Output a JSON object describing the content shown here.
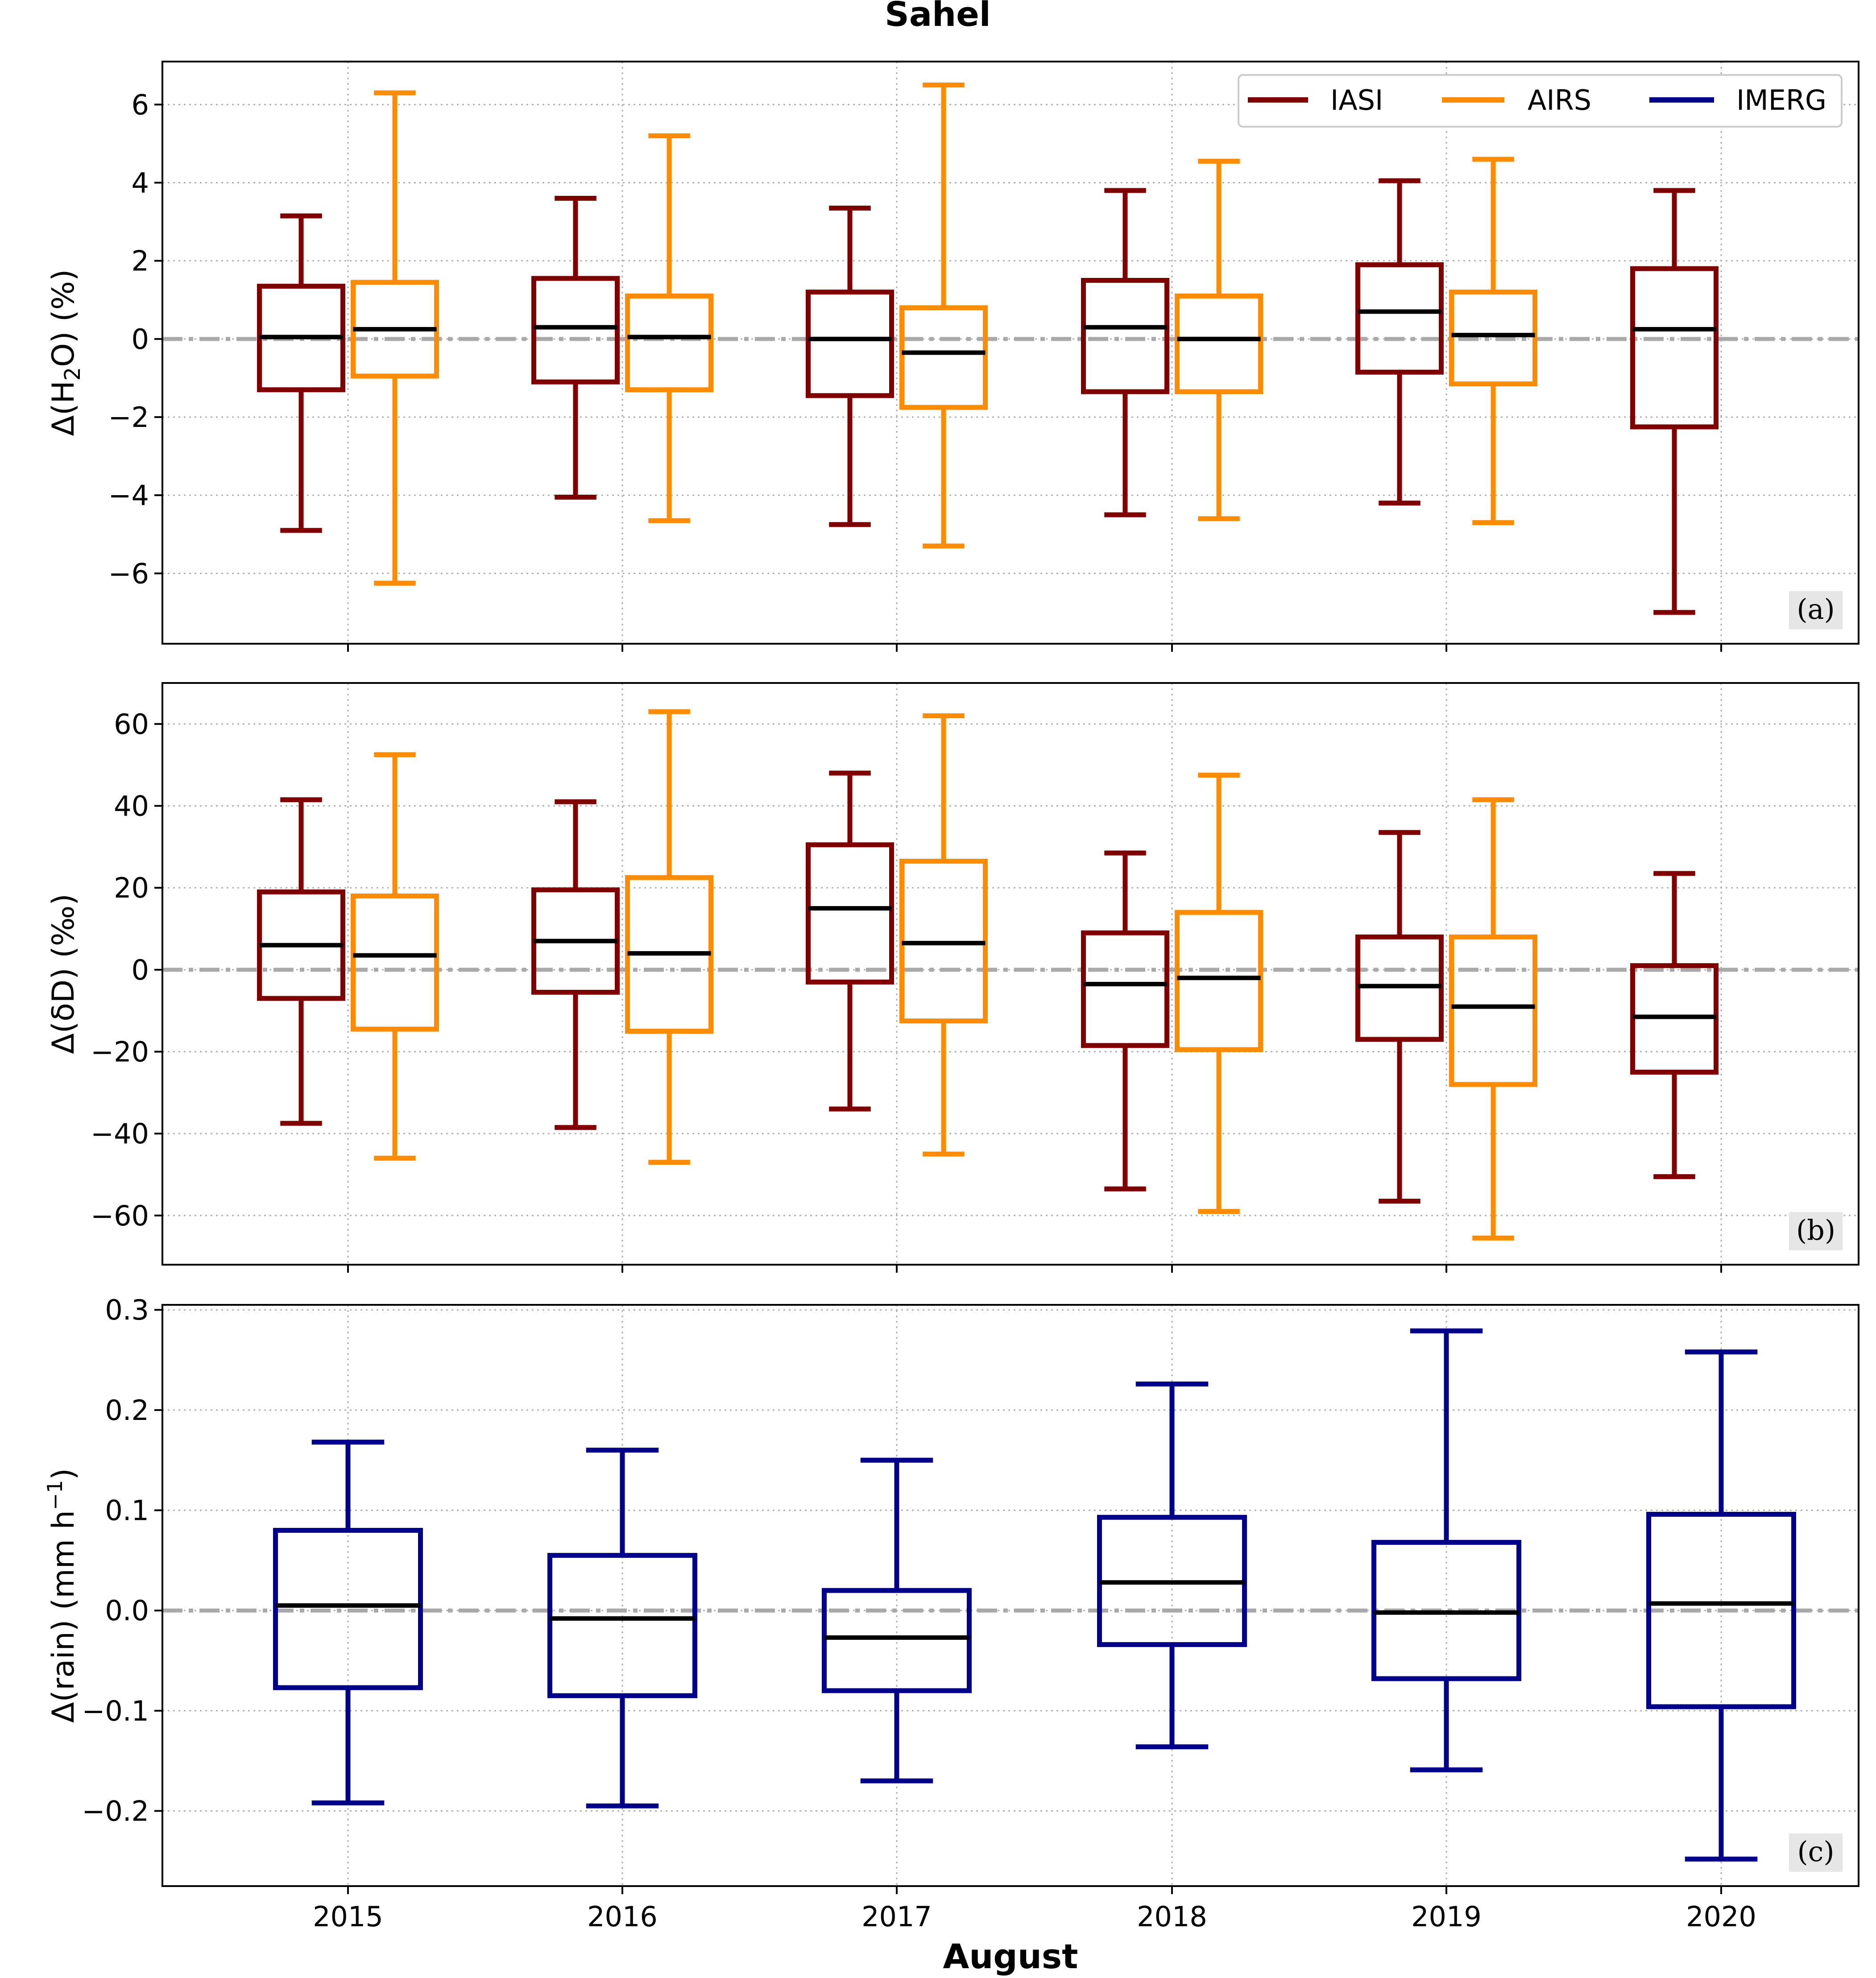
{
  "figure": {
    "title": "Sahel",
    "xlabel": "August",
    "legend": [
      "IASI",
      "AIRS",
      "IMERG"
    ]
  },
  "chart_data": [
    {
      "type": "box",
      "panel_label": "(a)",
      "ylabel_prefix": "Δ(H",
      "ylabel_sub": "2",
      "ylabel_suffix": "O) (%)",
      "categories": [
        "2015",
        "2016",
        "2017",
        "2018",
        "2019",
        "2020"
      ],
      "ylim": [
        -7.8,
        7.1
      ],
      "yticks": [
        -6,
        -4,
        -2,
        0,
        2,
        4,
        6
      ],
      "ytick_labels": [
        "−6",
        "−4",
        "−2",
        "0",
        "2",
        "4",
        "6"
      ],
      "grid": true,
      "legend_position": "top-right",
      "series": [
        {
          "name": "IASI",
          "color": "#800000",
          "boxes": [
            {
              "category": "2015",
              "whislo": -4.9,
              "q1": -1.3,
              "med": 0.05,
              "q3": 1.35,
              "whishi": 3.15
            },
            {
              "category": "2016",
              "whislo": -4.05,
              "q1": -1.1,
              "med": 0.3,
              "q3": 1.55,
              "whishi": 3.6
            },
            {
              "category": "2017",
              "whislo": -4.75,
              "q1": -1.45,
              "med": 0.0,
              "q3": 1.2,
              "whishi": 3.35
            },
            {
              "category": "2018",
              "whislo": -4.5,
              "q1": -1.35,
              "med": 0.3,
              "q3": 1.5,
              "whishi": 3.8
            },
            {
              "category": "2019",
              "whislo": -4.2,
              "q1": -0.85,
              "med": 0.7,
              "q3": 1.9,
              "whishi": 4.05
            },
            {
              "category": "2020",
              "whislo": -7.0,
              "q1": -2.25,
              "med": 0.25,
              "q3": 1.8,
              "whishi": 3.8
            }
          ]
        },
        {
          "name": "AIRS",
          "color": "#ff8c00",
          "boxes": [
            {
              "category": "2015",
              "whislo": -6.25,
              "q1": -0.95,
              "med": 0.25,
              "q3": 1.45,
              "whishi": 6.3
            },
            {
              "category": "2016",
              "whislo": -4.65,
              "q1": -1.3,
              "med": 0.05,
              "q3": 1.1,
              "whishi": 5.2
            },
            {
              "category": "2017",
              "whislo": -5.3,
              "q1": -1.75,
              "med": -0.35,
              "q3": 0.8,
              "whishi": 6.5
            },
            {
              "category": "2018",
              "whislo": -4.6,
              "q1": -1.35,
              "med": 0.0,
              "q3": 1.1,
              "whishi": 4.55
            },
            {
              "category": "2019",
              "whislo": -4.7,
              "q1": -1.15,
              "med": 0.1,
              "q3": 1.2,
              "whishi": 4.6
            }
          ]
        }
      ]
    },
    {
      "type": "box",
      "panel_label": "(b)",
      "ylabel": "Δ(δD) (‰)",
      "categories": [
        "2015",
        "2016",
        "2017",
        "2018",
        "2019",
        "2020"
      ],
      "ylim": [
        -72,
        70
      ],
      "yticks": [
        -60,
        -40,
        -20,
        0,
        20,
        40,
        60
      ],
      "ytick_labels": [
        "−60",
        "−40",
        "−20",
        "0",
        "20",
        "40",
        "60"
      ],
      "grid": true,
      "series": [
        {
          "name": "IASI",
          "color": "#800000",
          "boxes": [
            {
              "category": "2015",
              "whislo": -37.5,
              "q1": -7.0,
              "med": 6.0,
              "q3": 19.0,
              "whishi": 41.5
            },
            {
              "category": "2016",
              "whislo": -38.5,
              "q1": -5.5,
              "med": 7.0,
              "q3": 19.5,
              "whishi": 41.0
            },
            {
              "category": "2017",
              "whislo": -34.0,
              "q1": -3.0,
              "med": 15.0,
              "q3": 30.5,
              "whishi": 48.0
            },
            {
              "category": "2018",
              "whislo": -53.5,
              "q1": -18.5,
              "med": -3.5,
              "q3": 9.0,
              "whishi": 28.5
            },
            {
              "category": "2019",
              "whislo": -56.5,
              "q1": -17.0,
              "med": -4.0,
              "q3": 8.0,
              "whishi": 33.5
            },
            {
              "category": "2020",
              "whislo": -50.5,
              "q1": -25.0,
              "med": -11.5,
              "q3": 1.0,
              "whishi": 23.5
            }
          ]
        },
        {
          "name": "AIRS",
          "color": "#ff8c00",
          "boxes": [
            {
              "category": "2015",
              "whislo": -46.0,
              "q1": -14.5,
              "med": 3.5,
              "q3": 18.0,
              "whishi": 52.5
            },
            {
              "category": "2016",
              "whislo": -47.0,
              "q1": -15.0,
              "med": 4.0,
              "q3": 22.5,
              "whishi": 63.0
            },
            {
              "category": "2017",
              "whislo": -45.0,
              "q1": -12.5,
              "med": 6.5,
              "q3": 26.5,
              "whishi": 62.0
            },
            {
              "category": "2018",
              "whislo": -59.0,
              "q1": -19.5,
              "med": -2.0,
              "q3": 14.0,
              "whishi": 47.5
            },
            {
              "category": "2019",
              "whislo": -65.5,
              "q1": -28.0,
              "med": -9.0,
              "q3": 8.0,
              "whishi": 41.5
            }
          ]
        }
      ]
    },
    {
      "type": "box",
      "panel_label": "(c)",
      "ylabel_prefix": "Δ(rain) (mm h",
      "ylabel_sup": "−1",
      "ylabel_suffix": ")",
      "categories": [
        "2015",
        "2016",
        "2017",
        "2018",
        "2019",
        "2020"
      ],
      "ylim": [
        -0.275,
        0.305
      ],
      "yticks": [
        -0.2,
        -0.1,
        0.0,
        0.1,
        0.2,
        0.3
      ],
      "ytick_labels": [
        "−0.2",
        "−0.1",
        "0.0",
        "0.1",
        "0.2",
        "0.3"
      ],
      "grid": true,
      "series": [
        {
          "name": "IMERG",
          "color": "#00008b",
          "boxes": [
            {
              "category": "2015",
              "whislo": -0.192,
              "q1": -0.077,
              "med": 0.005,
              "q3": 0.08,
              "whishi": 0.168
            },
            {
              "category": "2016",
              "whislo": -0.195,
              "q1": -0.085,
              "med": -0.008,
              "q3": 0.055,
              "whishi": 0.16
            },
            {
              "category": "2017",
              "whislo": -0.17,
              "q1": -0.08,
              "med": -0.027,
              "q3": 0.02,
              "whishi": 0.15
            },
            {
              "category": "2018",
              "whislo": -0.136,
              "q1": -0.034,
              "med": 0.028,
              "q3": 0.093,
              "whishi": 0.226
            },
            {
              "category": "2019",
              "whislo": -0.159,
              "q1": -0.068,
              "med": -0.002,
              "q3": 0.068,
              "whishi": 0.279
            },
            {
              "category": "2020",
              "whislo": -0.248,
              "q1": -0.096,
              "med": 0.007,
              "q3": 0.096,
              "whishi": 0.258
            }
          ]
        }
      ]
    }
  ]
}
